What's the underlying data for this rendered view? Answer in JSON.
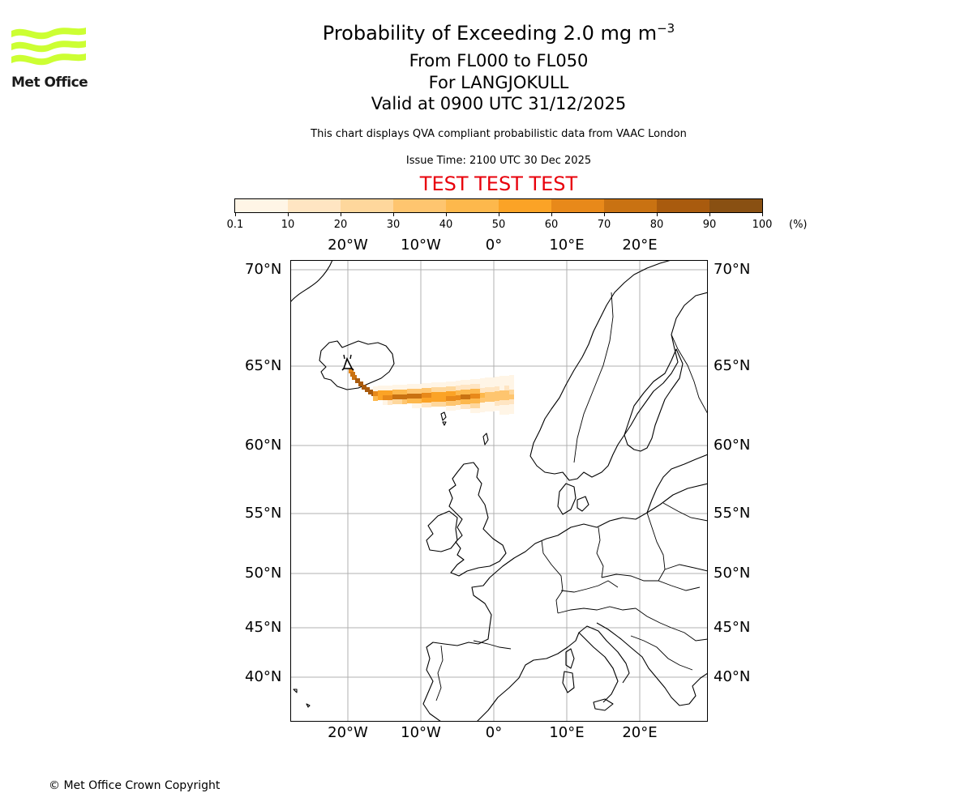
{
  "header": {
    "title_main": "Probability of Exceeding 2.0 mg m",
    "title_sup": "−3",
    "level_range": "From FL000 to FL050",
    "volcano": "For LANGJOKULL",
    "valid_time": "Valid at 0900 UTC 31/12/2025",
    "description": "This chart displays QVA compliant probabilistic data from VAAC London",
    "issue_time": "Issue Time: 2100 UTC 30 Dec 2025",
    "test_banner": "TEST TEST TEST"
  },
  "logo": {
    "text": "Met Office",
    "color": "#ccff33"
  },
  "colorbar": {
    "ticks": [
      "0.1",
      "10",
      "20",
      "30",
      "40",
      "50",
      "60",
      "70",
      "80",
      "90",
      "100"
    ],
    "unit": "(%)",
    "colors": [
      "#fff5e6",
      "#ffe5c2",
      "#fed79c",
      "#fec56f",
      "#fdb84c",
      "#fba326",
      "#e8891a",
      "#c97212",
      "#a95b0e",
      "#895012",
      "#69390a"
    ]
  },
  "map": {
    "lon_labels": [
      "20°W",
      "10°W",
      "0°",
      "10°E",
      "20°E"
    ],
    "lat_labels": [
      "70°N",
      "65°N",
      "60°N",
      "55°N",
      "50°N",
      "45°N",
      "40°N"
    ],
    "marker": "volcano-marker"
  },
  "footer": {
    "copyright": "© Met Office Crown Copyright"
  }
}
